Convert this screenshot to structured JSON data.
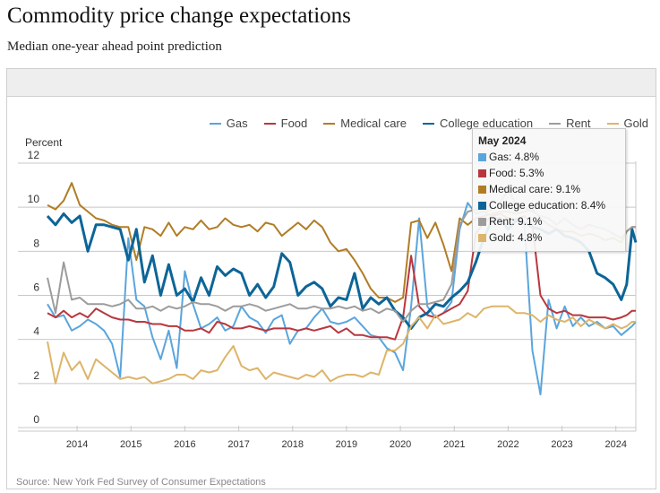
{
  "header": {
    "title": "Commodity price change expectations",
    "subtitle": "Median one-year ahead point prediction"
  },
  "source": "Source: New York Fed Survey of Consumer Expectations",
  "tooltip": {
    "title": "May 2024",
    "rows": [
      {
        "label": "Gas: 4.8%",
        "color": "#5aa5dc"
      },
      {
        "label": "Food: 5.3%",
        "color": "#b8373f"
      },
      {
        "label": "Medical care: 9.1%",
        "color": "#b07d26"
      },
      {
        "label": "College education: 8.4%",
        "color": "#0d6597"
      },
      {
        "label": "Rent: 9.1%",
        "color": "#9c9c9c"
      },
      {
        "label": "Gold: 4.8%",
        "color": "#ddb56a"
      }
    ]
  },
  "chart_data": {
    "type": "line",
    "title": "Commodity price change expectations",
    "subtitle": "Median one-year ahead point prediction",
    "xlabel": "",
    "ylabel": "Percent",
    "ylim": [
      0,
      12
    ],
    "yticks": [
      0,
      2,
      4,
      6,
      8,
      10,
      12
    ],
    "xticks": [
      "2014",
      "2015",
      "2016",
      "2017",
      "2018",
      "2019",
      "2020",
      "2021",
      "2022",
      "2023",
      "2024"
    ],
    "xrange": [
      2013.4,
      2024.37
    ],
    "grid": true,
    "legend_position": "top-right",
    "x": [
      2013.45,
      2013.6,
      2013.75,
      2013.9,
      2014.05,
      2014.2,
      2014.35,
      2014.5,
      2014.65,
      2014.8,
      2014.95,
      2015.1,
      2015.25,
      2015.4,
      2015.55,
      2015.7,
      2015.85,
      2016.0,
      2016.15,
      2016.3,
      2016.45,
      2016.6,
      2016.75,
      2016.9,
      2017.05,
      2017.2,
      2017.35,
      2017.5,
      2017.65,
      2017.8,
      2017.95,
      2018.1,
      2018.25,
      2018.4,
      2018.55,
      2018.7,
      2018.85,
      2019.0,
      2019.15,
      2019.3,
      2019.45,
      2019.6,
      2019.75,
      2019.9,
      2020.05,
      2020.2,
      2020.35,
      2020.5,
      2020.65,
      2020.8,
      2020.95,
      2021.1,
      2021.25,
      2021.4,
      2021.55,
      2021.7,
      2021.85,
      2022.0,
      2022.15,
      2022.3,
      2022.45,
      2022.6,
      2022.75,
      2022.9,
      2023.05,
      2023.2,
      2023.35,
      2023.5,
      2023.65,
      2023.8,
      2023.95,
      2024.1,
      2024.2,
      2024.3,
      2024.37
    ],
    "series": [
      {
        "name": "Gas",
        "color": "#5aa5dc",
        "values": [
          5.6,
          5.0,
          5.1,
          4.4,
          4.6,
          4.9,
          4.7,
          4.4,
          3.8,
          2.3,
          8.6,
          5.8,
          5.5,
          4.1,
          3.1,
          4.4,
          2.7,
          7.1,
          5.6,
          4.5,
          4.7,
          5.0,
          4.4,
          4.6,
          5.5,
          5.0,
          4.8,
          4.3,
          4.9,
          5.1,
          3.8,
          4.4,
          4.5,
          5.0,
          5.4,
          4.8,
          4.7,
          4.8,
          5.0,
          4.6,
          4.2,
          4.1,
          3.6,
          3.4,
          2.6,
          5.5,
          9.5,
          5.5,
          5.0,
          5.2,
          5.7,
          9.0,
          10.2,
          9.7,
          9.8,
          9.6,
          9.4,
          9.0,
          9.5,
          9.3,
          3.5,
          1.5,
          5.8,
          4.5,
          5.5,
          4.6,
          5.0,
          4.6,
          4.8,
          4.5,
          4.6,
          4.2,
          4.4,
          4.6,
          4.8
        ]
      },
      {
        "name": "Food",
        "color": "#b8373f",
        "values": [
          5.2,
          5.0,
          5.3,
          5.0,
          5.2,
          5.0,
          5.4,
          5.2,
          5.0,
          4.9,
          4.9,
          4.8,
          4.8,
          4.7,
          4.7,
          4.6,
          4.6,
          4.4,
          4.4,
          4.5,
          4.3,
          4.8,
          4.7,
          4.5,
          4.5,
          4.6,
          4.5,
          4.4,
          4.5,
          4.5,
          4.5,
          4.4,
          4.5,
          4.4,
          4.5,
          4.6,
          4.3,
          4.5,
          4.2,
          4.2,
          4.1,
          4.1,
          4.1,
          4.0,
          5.0,
          7.8,
          5.5,
          5.1,
          5.0,
          5.2,
          5.4,
          5.6,
          6.2,
          8.8,
          9.3,
          9.6,
          9.7,
          9.5,
          9.4,
          9.6,
          9.2,
          6.0,
          5.4,
          5.2,
          5.3,
          5.1,
          5.1,
          5.0,
          5.0,
          5.0,
          4.9,
          5.0,
          5.1,
          5.3,
          5.3
        ]
      },
      {
        "name": "Medical care",
        "color": "#b07d26",
        "values": [
          10.1,
          9.9,
          10.3,
          11.1,
          10.1,
          9.8,
          9.5,
          9.4,
          9.2,
          9.1,
          9.1,
          7.6,
          9.1,
          9.0,
          8.7,
          9.3,
          8.7,
          9.1,
          9.0,
          9.4,
          9.0,
          9.1,
          9.5,
          9.2,
          9.1,
          9.2,
          8.9,
          9.3,
          9.2,
          8.7,
          9.0,
          9.3,
          9.0,
          9.4,
          9.1,
          8.4,
          8.0,
          8.1,
          7.6,
          7.0,
          6.3,
          5.9,
          5.9,
          5.7,
          5.9,
          9.3,
          9.4,
          8.6,
          9.3,
          8.3,
          7.1,
          9.5,
          9.2,
          9.5,
          9.6,
          9.7,
          9.8,
          9.8,
          9.7,
          9.8,
          9.9,
          9.5,
          9.2,
          9.0,
          8.9,
          8.9,
          8.7,
          8.8,
          8.7,
          8.5,
          8.6,
          8.4,
          8.9,
          9.1,
          9.1
        ]
      },
      {
        "name": "College education",
        "color": "#0d6597",
        "values": [
          9.6,
          9.2,
          9.7,
          9.3,
          9.6,
          8.0,
          9.2,
          9.2,
          9.1,
          9.0,
          7.6,
          9.0,
          6.6,
          7.8,
          6.0,
          7.4,
          6.0,
          6.3,
          5.7,
          6.8,
          6.0,
          7.3,
          6.9,
          7.2,
          7.0,
          6.0,
          6.5,
          5.9,
          6.4,
          7.9,
          7.5,
          6.0,
          6.4,
          6.6,
          6.3,
          5.5,
          5.9,
          5.8,
          7.0,
          5.4,
          5.9,
          5.6,
          5.9,
          5.3,
          5.0,
          4.5,
          5.0,
          5.2,
          5.6,
          5.5,
          5.9,
          6.2,
          6.6,
          7.5,
          8.6,
          9.4,
          9.5,
          9.0,
          9.4,
          9.3,
          9.1,
          9.0,
          8.8,
          9.0,
          8.7,
          8.6,
          8.4,
          8.0,
          7.0,
          6.8,
          6.5,
          5.8,
          6.5,
          9.0,
          8.4
        ]
      },
      {
        "name": "Rent",
        "color": "#9c9c9c",
        "values": [
          6.8,
          5.2,
          7.5,
          5.8,
          5.9,
          5.6,
          5.6,
          5.6,
          5.5,
          5.6,
          5.8,
          5.4,
          5.4,
          5.5,
          5.3,
          5.5,
          5.4,
          5.5,
          5.7,
          5.6,
          5.6,
          5.5,
          5.3,
          5.5,
          5.5,
          5.6,
          5.5,
          5.3,
          5.4,
          5.5,
          5.6,
          5.4,
          5.4,
          5.5,
          5.4,
          5.4,
          5.5,
          5.4,
          5.5,
          5.3,
          5.4,
          5.2,
          5.4,
          5.3,
          4.8,
          5.3,
          5.6,
          5.6,
          5.7,
          5.8,
          6.5,
          9.2,
          9.8,
          9.9,
          9.8,
          9.9,
          10.2,
          10.8,
          10.1,
          10.0,
          9.8,
          9.6,
          9.5,
          9.2,
          9.5,
          9.2,
          9.0,
          9.2,
          9.1,
          9.0,
          8.8,
          8.6,
          8.9,
          9.1,
          9.1
        ]
      },
      {
        "name": "Gold",
        "color": "#ddb56a",
        "values": [
          3.9,
          2.0,
          3.4,
          2.6,
          3.0,
          2.2,
          3.1,
          2.8,
          2.5,
          2.2,
          2.3,
          2.2,
          2.3,
          2.0,
          2.1,
          2.2,
          2.4,
          2.4,
          2.2,
          2.6,
          2.5,
          2.6,
          3.2,
          3.7,
          2.8,
          2.6,
          2.7,
          2.2,
          2.5,
          2.4,
          2.3,
          2.2,
          2.4,
          2.3,
          2.6,
          2.1,
          2.3,
          2.4,
          2.4,
          2.3,
          2.5,
          2.4,
          3.5,
          3.5,
          3.8,
          4.6,
          5.0,
          4.5,
          5.1,
          4.7,
          4.8,
          4.9,
          5.2,
          5.0,
          5.4,
          5.5,
          5.5,
          5.5,
          5.2,
          5.2,
          5.1,
          4.8,
          5.1,
          4.9,
          4.8,
          5.0,
          4.6,
          4.9,
          4.7,
          4.5,
          4.7,
          4.5,
          4.6,
          4.8,
          4.8
        ]
      }
    ]
  }
}
